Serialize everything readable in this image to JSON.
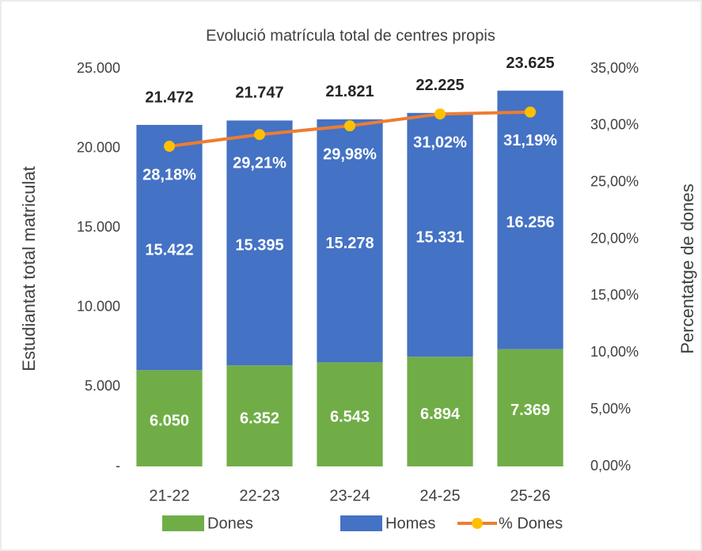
{
  "chart_data": {
    "type": "bar",
    "title": "Evolució matrícula total de centres propis",
    "ylabel": "Estudiantat total matriculat",
    "y2label": "Percentatge de dones",
    "categories": [
      "21-22",
      "22-23",
      "23-24",
      "24-25",
      "25-26"
    ],
    "series": [
      {
        "name": "Dones",
        "type": "bar",
        "color": "#70ad47",
        "values": [
          6050,
          6352,
          6543,
          6894,
          7369
        ],
        "value_labels": [
          "6.050",
          "6.352",
          "6.543",
          "6.894",
          "7.369"
        ]
      },
      {
        "name": "Homes",
        "type": "bar",
        "color": "#4472c4",
        "values": [
          15422,
          15395,
          15278,
          15331,
          16256
        ],
        "value_labels": [
          "15.422",
          "15.395",
          "15.278",
          "15.331",
          "16.256"
        ]
      },
      {
        "name": "% Dones",
        "type": "line",
        "axis": "y2",
        "color": "#ed7d31",
        "marker_color": "#ffc000",
        "values": [
          28.18,
          29.21,
          29.98,
          31.02,
          31.19
        ],
        "value_labels": [
          "28,18%",
          "29,21%",
          "29,98%",
          "31,02%",
          "31,19%"
        ]
      }
    ],
    "totals": [
      21472,
      21747,
      21821,
      22225,
      23625
    ],
    "total_labels": [
      "21.472",
      "21.747",
      "21.821",
      "22.225",
      "23.625"
    ],
    "ylim": [
      0,
      25000
    ],
    "yticks": [
      {
        "value": 0,
        "label": "-"
      },
      {
        "value": 5000,
        "label": "5.000"
      },
      {
        "value": 10000,
        "label": "10.000"
      },
      {
        "value": 15000,
        "label": "15.000"
      },
      {
        "value": 20000,
        "label": "20.000"
      },
      {
        "value": 25000,
        "label": "25.000"
      }
    ],
    "y2lim": [
      0,
      35
    ],
    "y2ticks": [
      {
        "value": 0,
        "label": "0,00%"
      },
      {
        "value": 5,
        "label": "5,00%"
      },
      {
        "value": 10,
        "label": "10,00%"
      },
      {
        "value": 15,
        "label": "15,00%"
      },
      {
        "value": 20,
        "label": "20,00%"
      },
      {
        "value": 25,
        "label": "25,00%"
      },
      {
        "value": 30,
        "label": "30,00%"
      },
      {
        "value": 35,
        "label": "35,00%"
      }
    ],
    "legend": "bottom"
  }
}
